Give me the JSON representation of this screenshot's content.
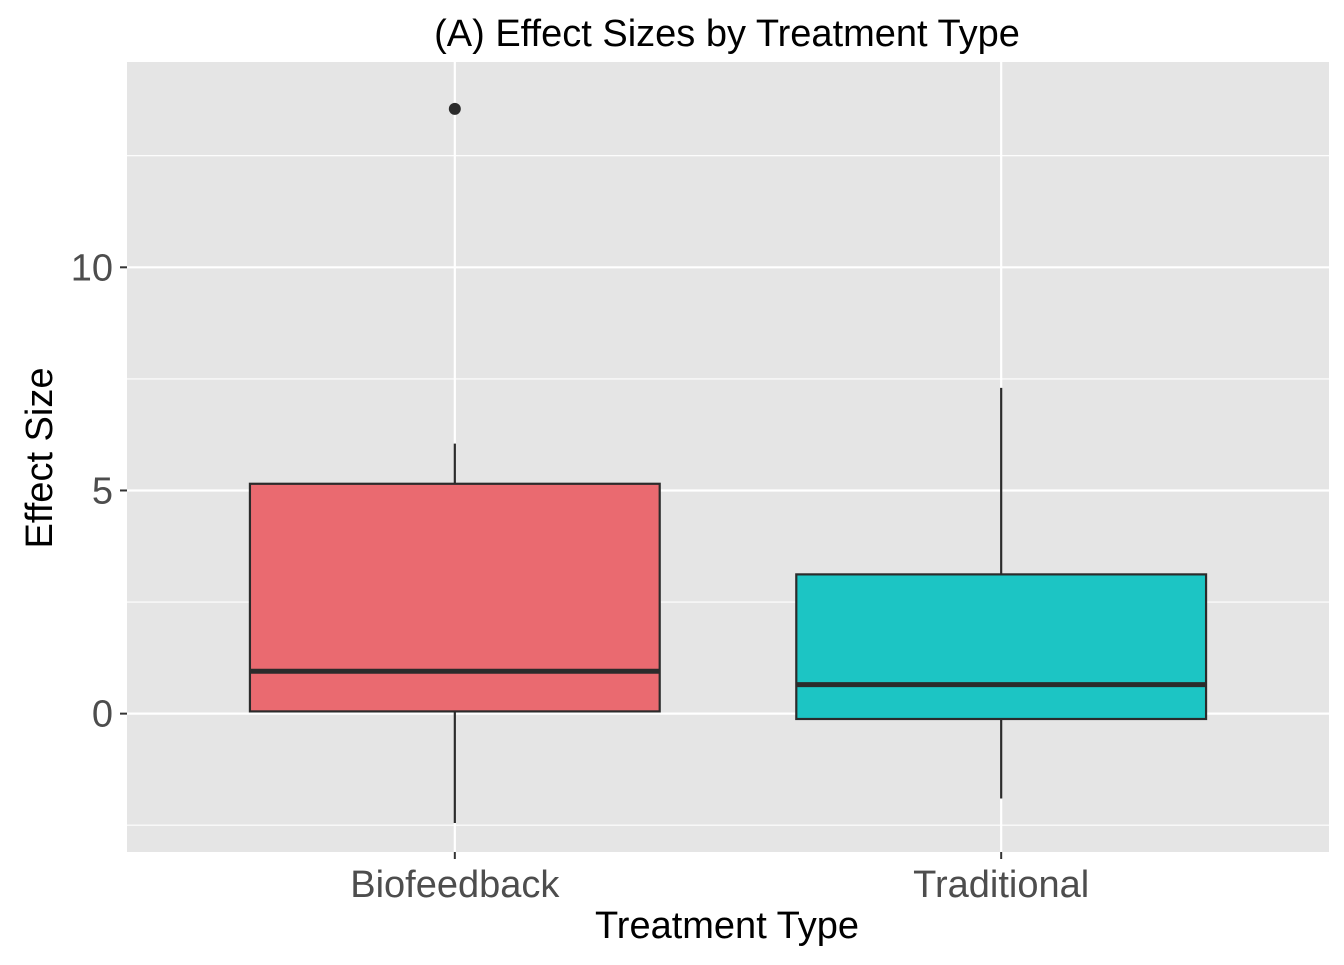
{
  "chart_data": {
    "type": "box",
    "title": "(A) Effect Sizes by Treatment Type",
    "xlabel": "Treatment Type",
    "ylabel": "Effect Size",
    "categories": [
      "Biofeedback",
      "Traditional"
    ],
    "y_ticks": [
      0,
      5,
      10
    ],
    "y_tick_labels": [
      "0",
      "5",
      "10"
    ],
    "ylim": [
      -3.1,
      14.6
    ],
    "grid": true,
    "series": [
      {
        "category": "Biofeedback",
        "whisker_low": -2.45,
        "q1": 0.05,
        "median": 0.95,
        "q3": 5.15,
        "whisker_high": 6.05,
        "outliers": [
          13.55
        ],
        "color": "#EA6A70"
      },
      {
        "category": "Traditional",
        "whisker_low": -1.9,
        "q1": -0.12,
        "median": 0.65,
        "q3": 3.12,
        "whisker_high": 7.3,
        "outliers": [],
        "color": "#1CC5C4"
      }
    ],
    "colors": {
      "panel_background": "#E5E5E5",
      "grid": "#FFFFFF",
      "box_outline": "#2B2B2B"
    }
  }
}
